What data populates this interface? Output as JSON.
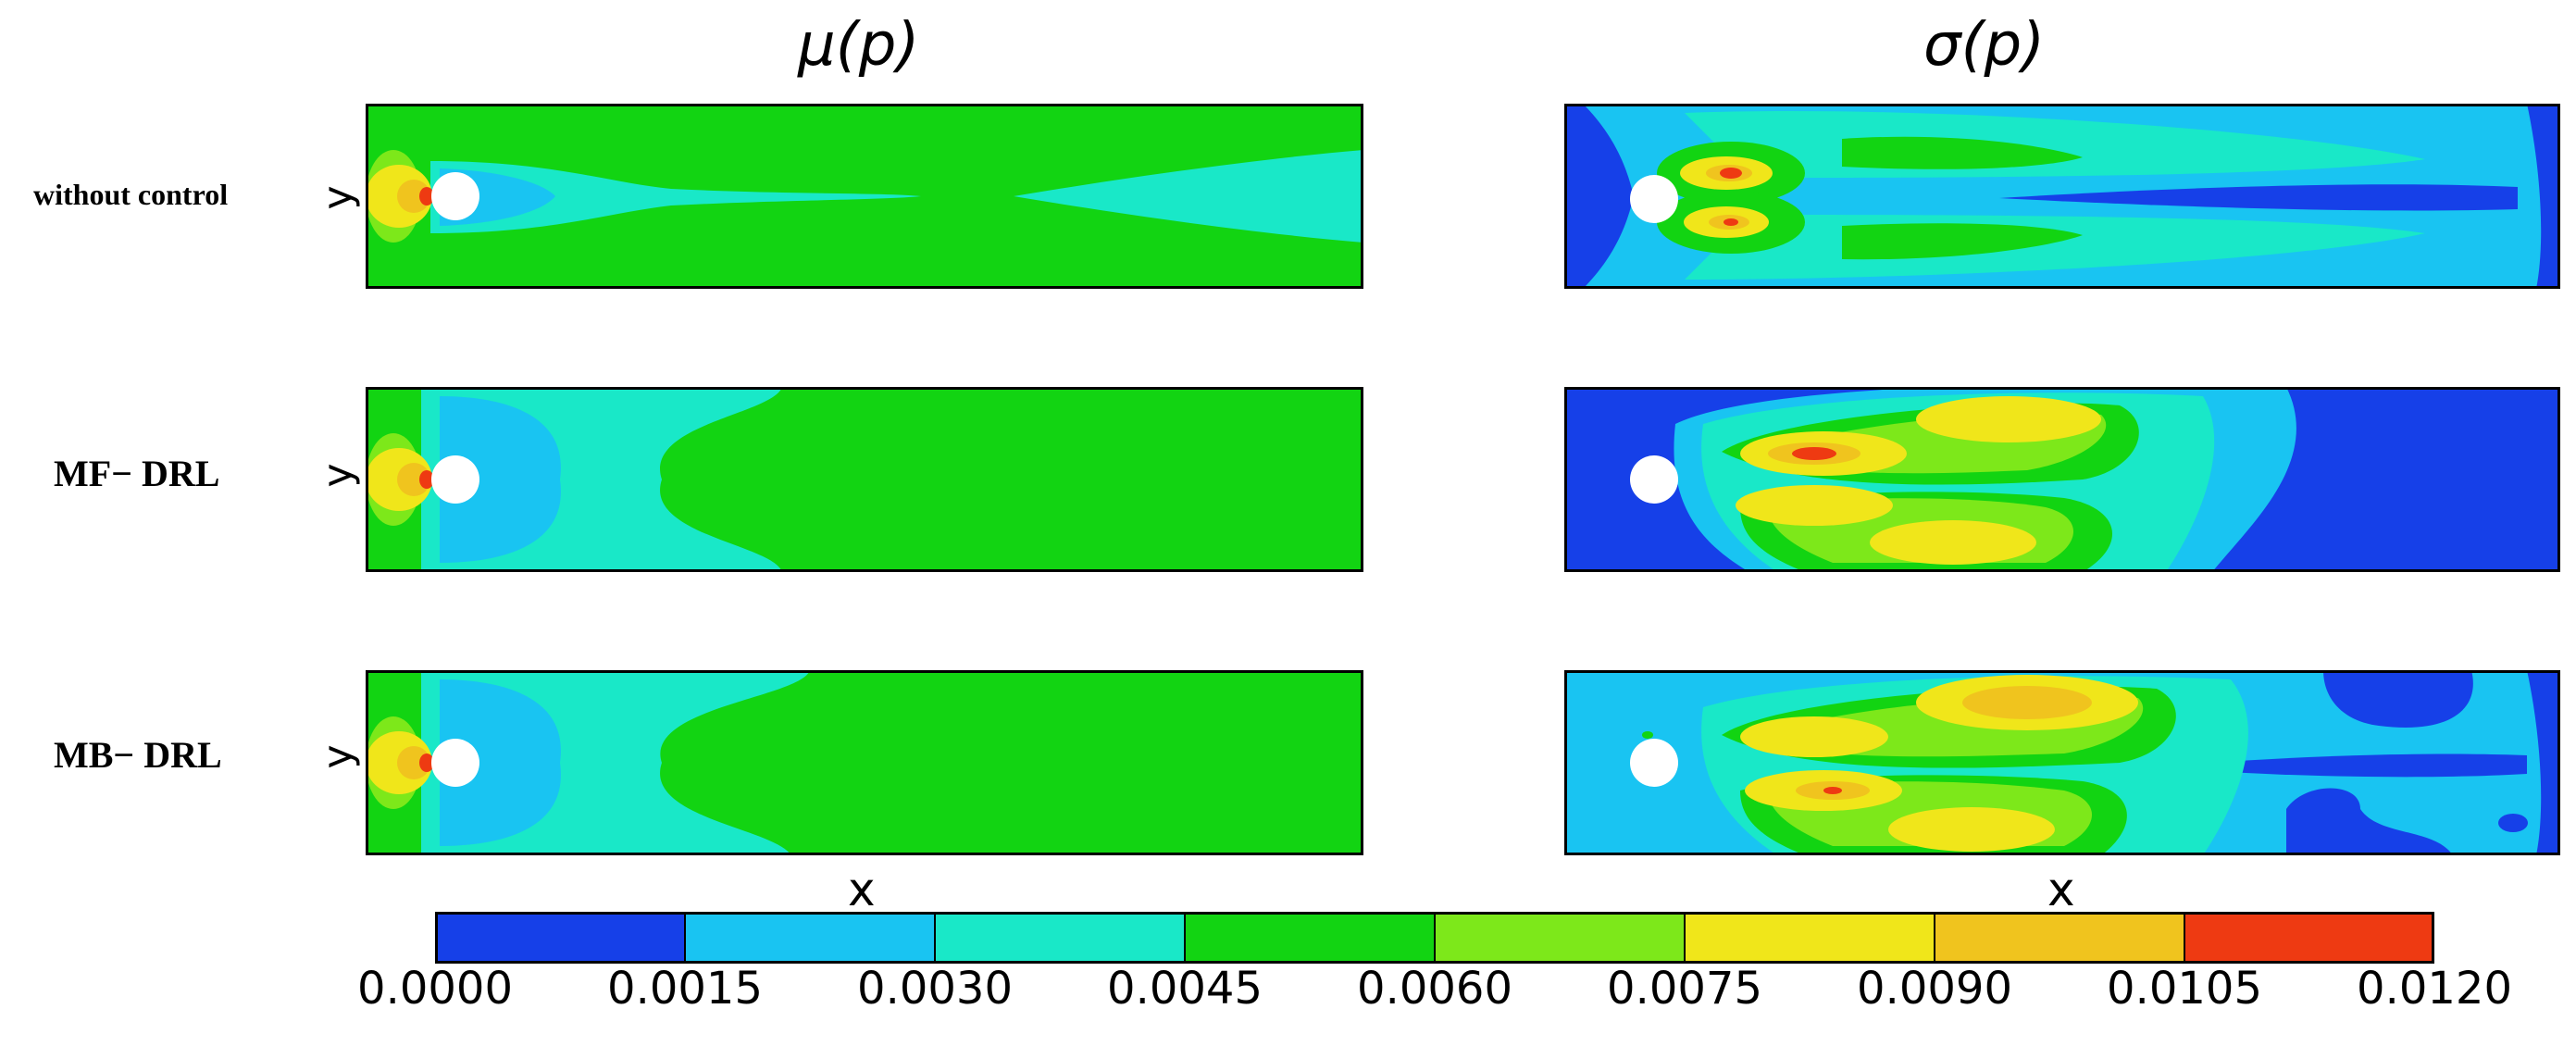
{
  "chart_data": {
    "type": "heatmap",
    "panel_titles": [
      "μ(p)",
      "σ(p)"
    ],
    "row_labels": [
      "without control",
      "MF− DRL",
      "MB− DRL"
    ],
    "ylabel": "y",
    "xlabel": "x",
    "colorbar": {
      "ticks": [
        "0.0000",
        "0.0015",
        "0.0030",
        "0.0045",
        "0.0060",
        "0.0075",
        "0.0090",
        "0.0105",
        "0.0120"
      ],
      "range": [
        0.0,
        0.012
      ],
      "levels": 8,
      "colors": [
        "#1640e8",
        "#19c4f2",
        "#19e8c8",
        "#12d412",
        "#7de81a",
        "#f0e61a",
        "#f0c41e",
        "#ee3a12"
      ]
    },
    "colors": {
      "mean_background": "#12d412",
      "std_background": "#19c4f2",
      "cylinder": "#ffffff",
      "frame": "#000000"
    }
  }
}
